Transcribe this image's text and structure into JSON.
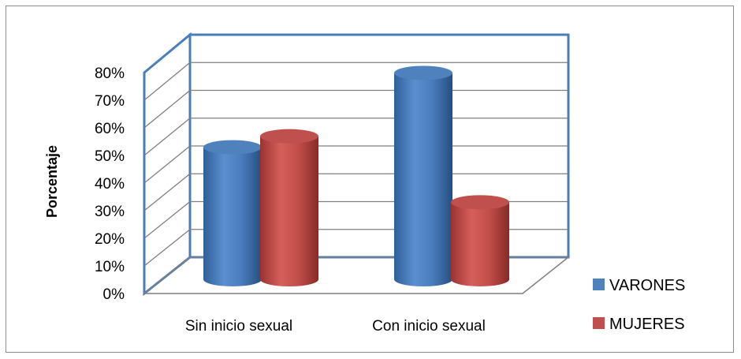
{
  "chart_data": {
    "type": "bar",
    "style": "3d-cylinder",
    "categories": [
      "Sin inicio sexual",
      "Con inicio sexual"
    ],
    "series": [
      {
        "name": "VARONES",
        "values": [
          48,
          75
        ],
        "color": "#4f81bd"
      },
      {
        "name": "MUJERES",
        "values": [
          52,
          28
        ],
        "color": "#c0504d"
      }
    ],
    "ylabel": "Porcentaje",
    "ylim": [
      0,
      80
    ],
    "yticks": [
      "0%",
      "10%",
      "20%",
      "30%",
      "40%",
      "50%",
      "60%",
      "70%",
      "80%"
    ],
    "grid": true,
    "legend_position": "bottom-right"
  }
}
